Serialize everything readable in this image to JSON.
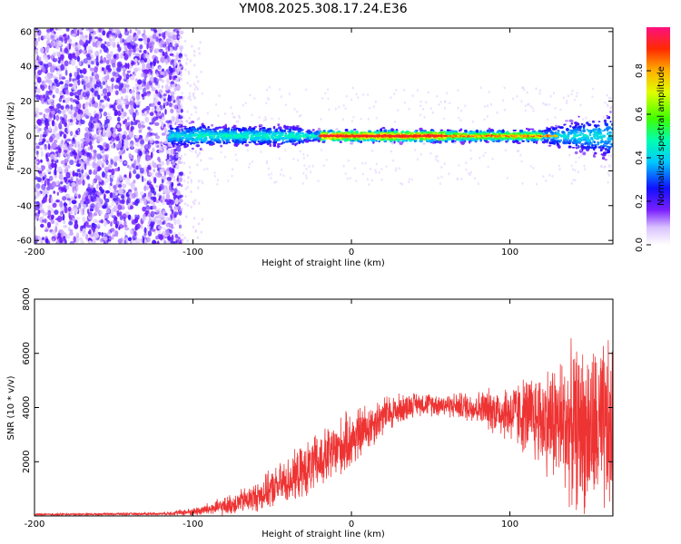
{
  "title": "YM08.2025.308.17.24.E36",
  "chart_data": [
    {
      "type": "heatmap",
      "name": "spectrogram",
      "xlabel": "Height of straight line (km)",
      "ylabel": "Frequency (Hz)",
      "xlim": [
        -200,
        165
      ],
      "ylim": [
        -62,
        62
      ],
      "xticks": [
        -200,
        -100,
        0,
        100
      ],
      "yticks": [
        60,
        40,
        20,
        0,
        -20,
        -40,
        -60
      ],
      "colorbar": {
        "label": "Normalized spectral amplitude",
        "range": [
          0.0,
          1.0
        ],
        "ticks": [
          0.0,
          0.2,
          0.4,
          0.6,
          0.8
        ]
      },
      "features": {
        "broadband_noise_x_range": [
          -200,
          -110
        ],
        "narrow_band_center_hz": 0,
        "narrow_band_x_range": [
          -115,
          165
        ],
        "peak_amplitude_x_range": [
          -20,
          60
        ]
      }
    },
    {
      "type": "line",
      "name": "snr",
      "xlabel": "Height of straight line (km)",
      "ylabel": "SNR (10 * v/v)",
      "xlim": [
        -200,
        165
      ],
      "ylim": [
        0,
        8000
      ],
      "xticks": [
        -200,
        -100,
        0,
        100
      ],
      "yticks": [
        2000,
        4000,
        6000,
        8000
      ],
      "series": [
        {
          "name": "SNR",
          "color": "#ee3333",
          "envelope_x": [
            -200,
            -120,
            -100,
            -80,
            -60,
            -40,
            -20,
            0,
            20,
            40,
            60,
            80,
            100,
            120,
            140,
            165
          ],
          "envelope_mean": [
            50,
            80,
            150,
            350,
            700,
            1300,
            2000,
            2800,
            3700,
            4150,
            4100,
            4000,
            3800,
            3600,
            3300,
            3000
          ],
          "envelope_spread": [
            30,
            40,
            120,
            280,
            450,
            700,
            900,
            900,
            600,
            350,
            350,
            500,
            900,
            1500,
            2400,
            2800
          ]
        }
      ]
    }
  ]
}
